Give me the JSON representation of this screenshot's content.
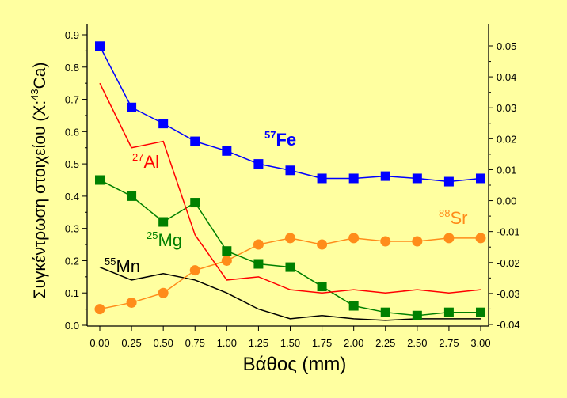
{
  "chart_data": {
    "type": "line",
    "xlabel": "Βάθος (mm)",
    "ylabel": "Συγκέντρωση στοιχείου (X:",
    "ylabel_sup": "43",
    "ylabel_end": "Ca)",
    "ylim": [
      0,
      0.9
    ],
    "y2lim": [
      -0.04,
      0.05
    ],
    "xlim": [
      0,
      3
    ],
    "x": [
      0,
      0.25,
      0.5,
      0.75,
      1.0,
      1.25,
      1.5,
      1.75,
      2.0,
      2.25,
      2.5,
      2.75,
      3.0
    ],
    "x_tick_labels": [
      "0.00",
      "0.25",
      "0.50",
      "0.75",
      "1.00",
      "1.25",
      "1.50",
      "1.75",
      "2.00",
      "2.25",
      "2.50",
      "2.75",
      "3.00"
    ],
    "y_tick_labels": [
      "0.0",
      "0.1",
      "0.2",
      "0.3",
      "0.4",
      "0.5",
      "0.6",
      "0.7",
      "0.8",
      "0.9"
    ],
    "y2_tick_labels": [
      "-0.04",
      "-0.03",
      "-0.02",
      "-0.01",
      "0.00",
      "0.01",
      "0.02",
      "0.03",
      "0.04",
      "0.05"
    ],
    "series": [
      {
        "name": "Fe",
        "mass": "57",
        "color": "#0000ff",
        "marker": "square",
        "bold": true,
        "values": [
          0.865,
          0.675,
          0.625,
          0.57,
          0.54,
          0.5,
          0.48,
          0.455,
          0.455,
          0.462,
          0.455,
          0.445,
          0.455
        ]
      },
      {
        "name": "Al",
        "mass": "27",
        "color": "#ff0000",
        "marker": "none",
        "values": [
          0.75,
          0.55,
          0.57,
          0.28,
          0.14,
          0.15,
          0.11,
          0.1,
          0.11,
          0.1,
          0.11,
          0.1,
          0.11
        ]
      },
      {
        "name": "Mg",
        "mass": "25",
        "color": "#008000",
        "marker": "square",
        "values": [
          0.45,
          0.4,
          0.32,
          0.38,
          0.23,
          0.19,
          0.18,
          0.12,
          0.06,
          0.04,
          0.03,
          0.04,
          0.04
        ]
      },
      {
        "name": "Sr",
        "mass": "88",
        "color": "#ff8c1a",
        "marker": "circle",
        "values": [
          0.05,
          0.07,
          0.1,
          0.17,
          0.2,
          0.25,
          0.27,
          0.25,
          0.27,
          0.26,
          0.26,
          0.27,
          0.27
        ]
      },
      {
        "name": "Mn",
        "mass": "55",
        "color": "#000000",
        "marker": "none",
        "values": [
          0.18,
          0.14,
          0.16,
          0.14,
          0.1,
          0.05,
          0.02,
          0.03,
          0.02,
          0.015,
          0.02,
          0.02,
          0.02
        ]
      }
    ]
  }
}
